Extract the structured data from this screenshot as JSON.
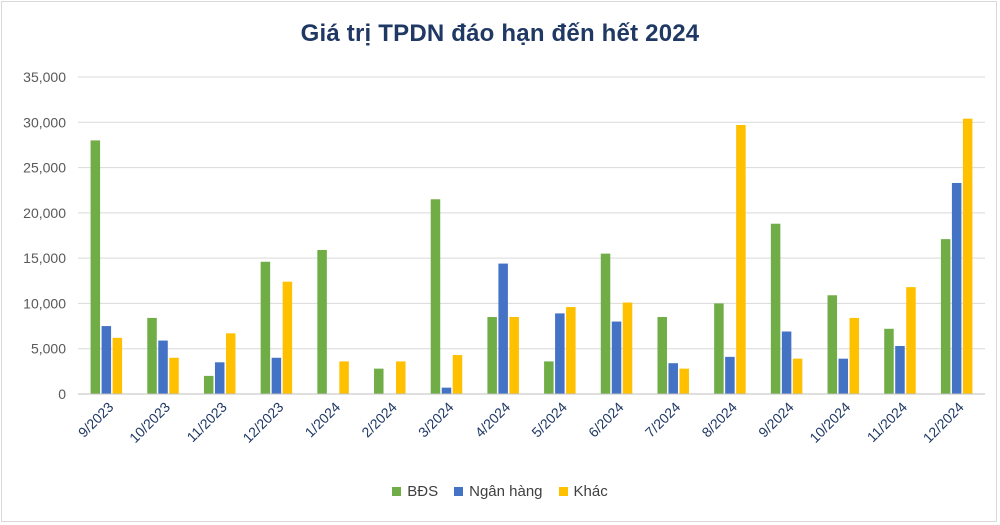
{
  "chart_data": {
    "type": "bar",
    "title": "Giá trị TPDN đáo hạn đến hết 2024",
    "xlabel": "",
    "ylabel": "",
    "categories": [
      "9/2023",
      "10/2023",
      "11/2023",
      "12/2023",
      "1/2024",
      "2/2024",
      "3/2024",
      "4/2024",
      "5/2024",
      "6/2024",
      "7/2024",
      "8/2024",
      "9/2024",
      "10/2024",
      "11/2024",
      "12/2024"
    ],
    "ylim": [
      0,
      35000
    ],
    "yticks": [
      0,
      5000,
      10000,
      15000,
      20000,
      25000,
      30000,
      35000
    ],
    "ytick_labels": [
      "0",
      "5,000",
      "10,000",
      "15,000",
      "20,000",
      "25,000",
      "30,000",
      "35,000"
    ],
    "grid": true,
    "legend_position": "bottom",
    "series": [
      {
        "name": "BĐS",
        "color": "#70ad47",
        "values": [
          28000,
          8400,
          2000,
          14600,
          15900,
          2800,
          21500,
          8500,
          3600,
          15500,
          8500,
          10000,
          18800,
          10900,
          7200,
          17100
        ]
      },
      {
        "name": "Ngân hàng",
        "color": "#4472c4",
        "values": [
          7500,
          5900,
          3500,
          4000,
          0,
          0,
          700,
          14400,
          8900,
          8000,
          3400,
          4100,
          6900,
          3900,
          5300,
          23300
        ]
      },
      {
        "name": "Khác",
        "color": "#ffc000",
        "values": [
          6200,
          4000,
          6700,
          12400,
          3600,
          3600,
          4300,
          8500,
          9600,
          10100,
          2800,
          29700,
          3900,
          8400,
          11800,
          30400
        ]
      }
    ]
  }
}
